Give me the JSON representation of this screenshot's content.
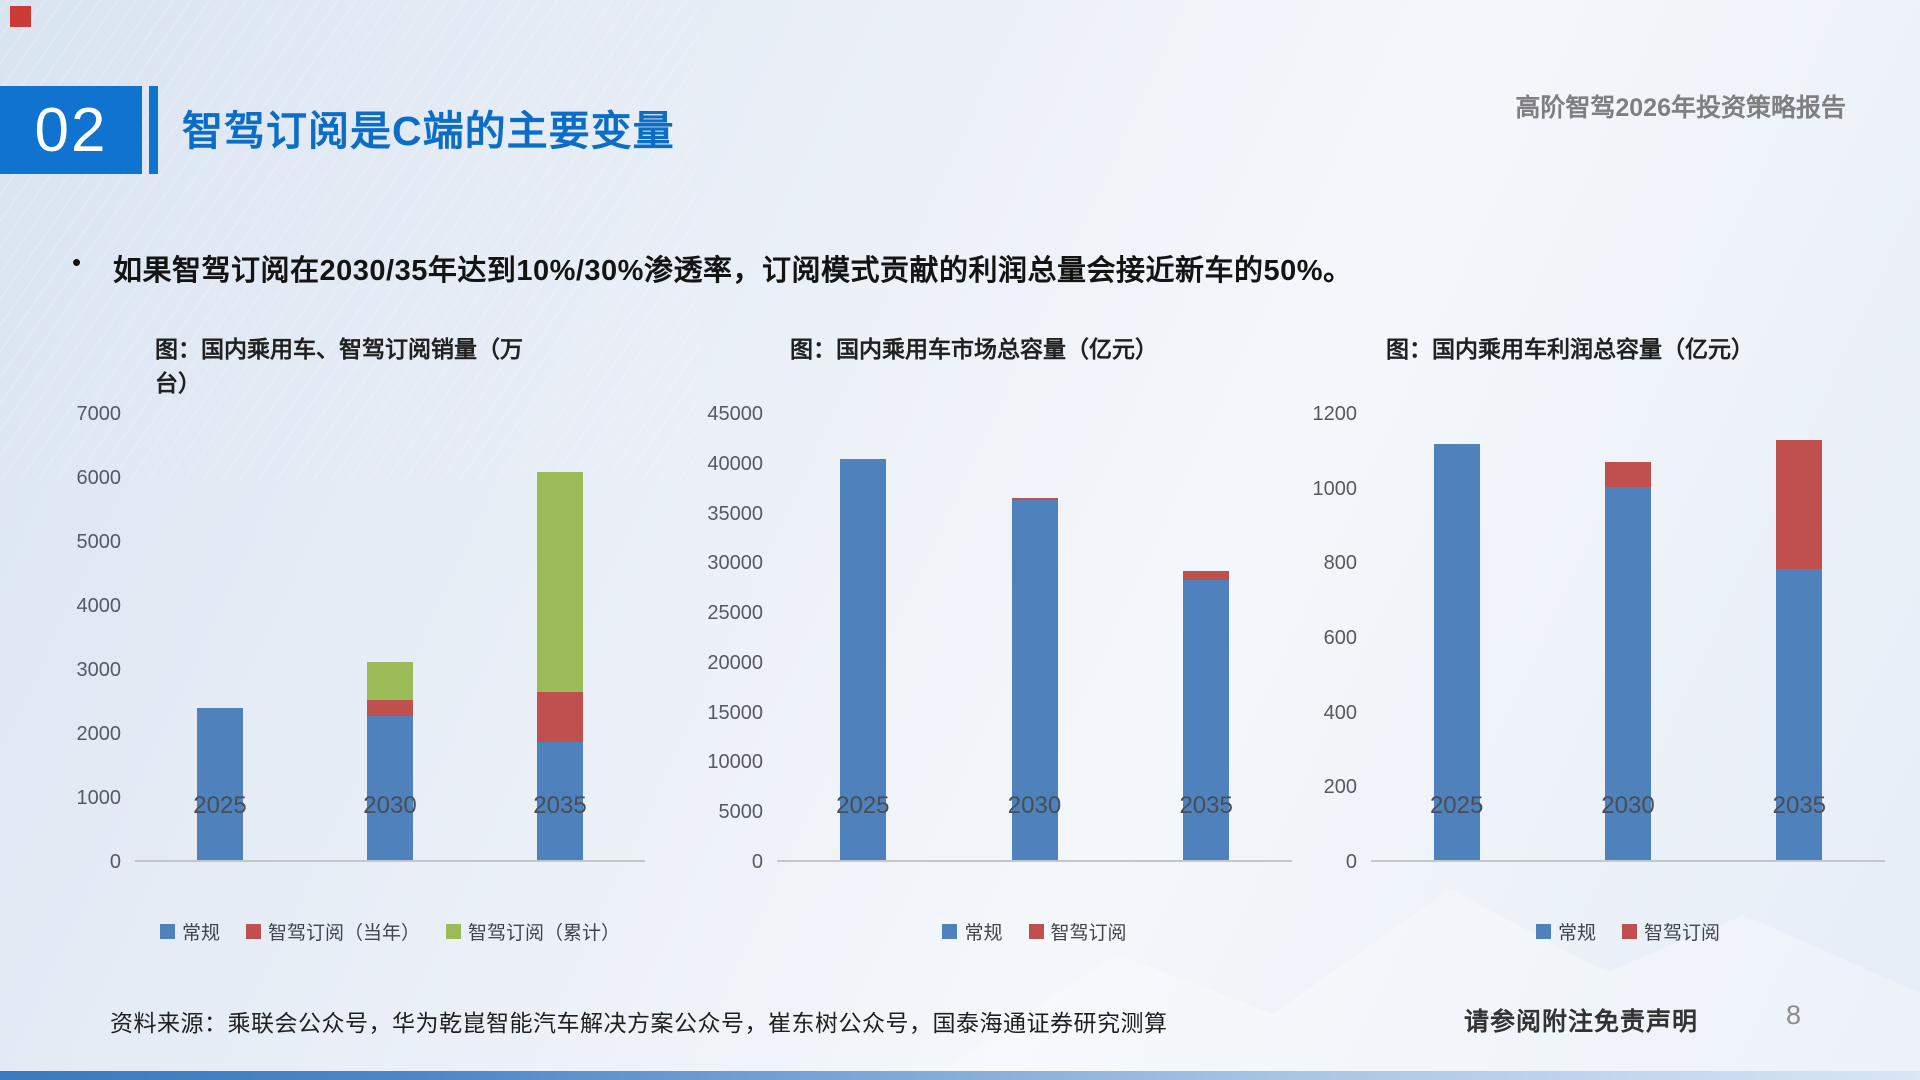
{
  "page": {
    "chapter_number": "02",
    "title": "智驾订阅是C端的主要变量",
    "header_right": "高阶智驾2026年投资策略报告",
    "bullet_marker": "•",
    "bullet": "如果智驾订阅在2030/35年达到10%/30%渗透率，订阅模式贡献的利润总量会接近新车的50%。",
    "source": "资料来源：乘联会公众号，华为乾崑智能汽车解决方案公众号，崔东树公众号，国泰海通证券研究测算",
    "disclaimer": "请参阅附注免责声明",
    "page_number": "8"
  },
  "colors": {
    "accent_blue": "#1173d0",
    "title_blue": "#0c6dc7",
    "series_regular": "#4f81bd",
    "series_subscription_red": "#c0504d",
    "series_subscription_green": "#9bbb59"
  },
  "chart_data": [
    {
      "type": "bar",
      "stacked": true,
      "title": "图：国内乘用车、智驾订阅销量（万台）",
      "title_lines": [
        "图：国内乘用车、智驾订阅销量（万",
        "台）"
      ],
      "categories": [
        "2025",
        "2030",
        "2035"
      ],
      "series": [
        {
          "name": "常规",
          "color": "#4f81bd",
          "values": [
            2370,
            2250,
            1840
          ]
        },
        {
          "name": "智驾订阅（当年）",
          "color": "#c0504d",
          "values": [
            0,
            250,
            780
          ]
        },
        {
          "name": "智驾订阅（累计）",
          "color": "#9bbb59",
          "values": [
            0,
            600,
            3450
          ]
        }
      ],
      "ylim": [
        0,
        7000
      ],
      "ystep": 1000,
      "grid": false,
      "legend_position": "bottom"
    },
    {
      "type": "bar",
      "stacked": true,
      "title": "图：国内乘用车市场总容量（亿元）",
      "title_lines": [
        "图：国内乘用车市场总容量（亿元）"
      ],
      "categories": [
        "2025",
        "2030",
        "2035"
      ],
      "series": [
        {
          "name": "常规",
          "color": "#4f81bd",
          "values": [
            40300,
            36200,
            28100
          ]
        },
        {
          "name": "智驾订阅",
          "color": "#c0504d",
          "values": [
            0,
            200,
            900
          ]
        }
      ],
      "ylim": [
        0,
        45000
      ],
      "ystep": 5000,
      "grid": false,
      "legend_position": "bottom"
    },
    {
      "type": "bar",
      "stacked": true,
      "title": "图：国内乘用车利润总容量（亿元）",
      "title_lines": [
        "图：国内乘用车利润总容量（亿元）"
      ],
      "categories": [
        "2025",
        "2030",
        "2035"
      ],
      "series": [
        {
          "name": "常规",
          "color": "#4f81bd",
          "values": [
            1115,
            1000,
            780
          ]
        },
        {
          "name": "智驾订阅",
          "color": "#c0504d",
          "values": [
            0,
            65,
            345
          ]
        }
      ],
      "ylim": [
        0,
        1200
      ],
      "ystep": 200,
      "grid": false,
      "legend_position": "bottom"
    }
  ]
}
